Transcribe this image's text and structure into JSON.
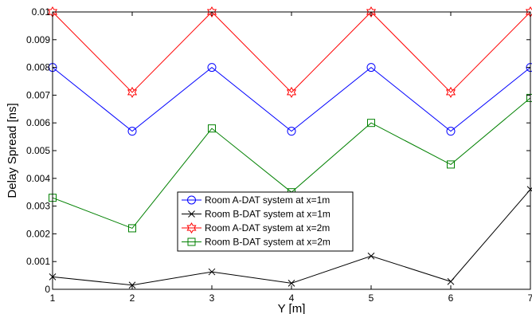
{
  "chart_data": {
    "type": "line",
    "xlabel": "Y [m]",
    "ylabel": "Delay Spread [ns]",
    "xlim": [
      1,
      7
    ],
    "ylim": [
      0,
      0.01
    ],
    "xticks": [
      "1",
      "2",
      "3",
      "4",
      "5",
      "6",
      "7"
    ],
    "yticks": [
      "0",
      "0.001",
      "0.002",
      "0.003",
      "0.004",
      "0.005",
      "0.006",
      "0.007",
      "0.008",
      "0.009",
      "0.01"
    ],
    "x": [
      1,
      2,
      3,
      4,
      5,
      6,
      7
    ],
    "legend_position": "bottom-center",
    "series": [
      {
        "name": "Room A-DAT system at x=1m",
        "color": "#0000ff",
        "marker": "circle",
        "values": [
          0.008,
          0.0057,
          0.008,
          0.0057,
          0.008,
          0.0057,
          0.008
        ]
      },
      {
        "name": "Room B-DAT system at x=1m",
        "color": "#000000",
        "marker": "x",
        "values": [
          0.00045,
          0.00015,
          0.00063,
          0.00022,
          0.0012,
          0.00028,
          0.0036
        ]
      },
      {
        "name": "Room A-DAT system at x=2m",
        "color": "#ff0000",
        "marker": "hexagram",
        "values": [
          0.01,
          0.0071,
          0.01,
          0.0071,
          0.01,
          0.0071,
          0.01
        ]
      },
      {
        "name": "Room B-DAT system at x=2m",
        "color": "#008000",
        "marker": "square",
        "values": [
          0.0033,
          0.0022,
          0.0058,
          0.0035,
          0.006,
          0.0045,
          0.0069
        ]
      }
    ]
  }
}
